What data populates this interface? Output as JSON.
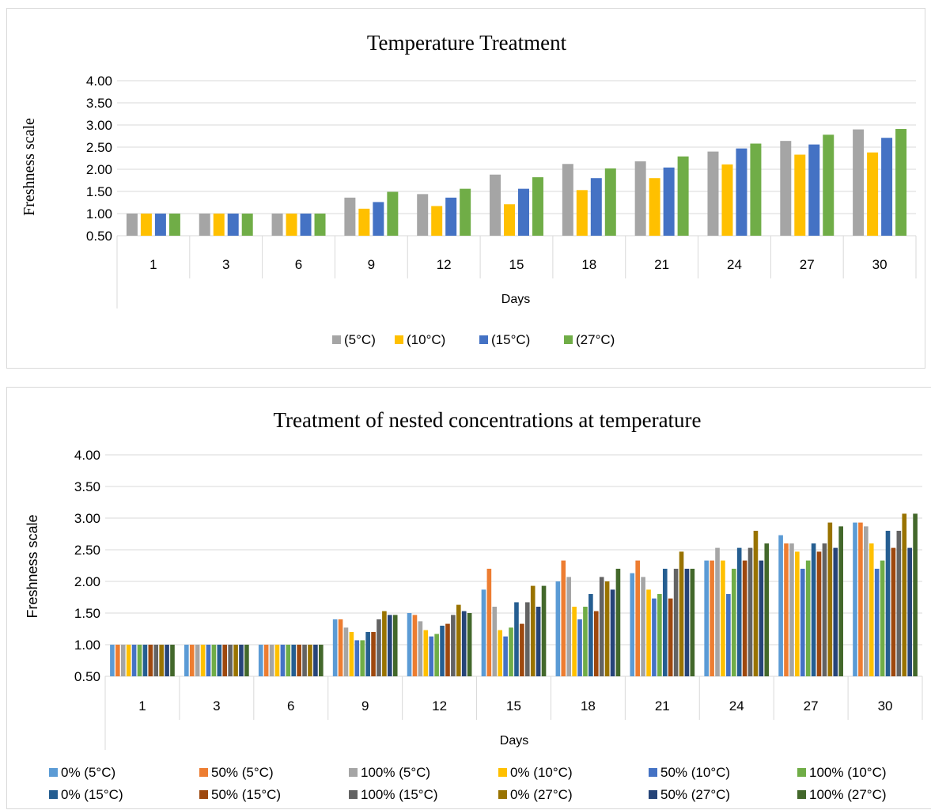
{
  "chart_data": [
    {
      "type": "bar",
      "title": "Temperature Treatment",
      "xlabel": "Days",
      "ylabel": "Freshness scale",
      "ylim": [
        0.5,
        4.0
      ],
      "yticks": [
        "0.50",
        "1.00",
        "1.50",
        "2.00",
        "2.50",
        "3.00",
        "3.50",
        "4.00"
      ],
      "categories": [
        "1",
        "3",
        "6",
        "9",
        "12",
        "15",
        "18",
        "21",
        "24",
        "27",
        "30"
      ],
      "legend_position": "bottom",
      "grid": true,
      "series": [
        {
          "name": "(5°C)",
          "color": "#a5a5a5",
          "values": [
            1.0,
            1.0,
            1.0,
            1.36,
            1.44,
            1.88,
            2.12,
            2.18,
            2.4,
            2.64,
            2.9
          ]
        },
        {
          "name": "(10°C)",
          "color": "#ffc000",
          "values": [
            1.0,
            1.0,
            1.0,
            1.11,
            1.17,
            1.21,
            1.53,
            1.8,
            2.11,
            2.33,
            2.38
          ]
        },
        {
          "name": "(15°C)",
          "color": "#4472c4",
          "values": [
            1.0,
            1.0,
            1.0,
            1.26,
            1.36,
            1.56,
            1.8,
            2.04,
            2.47,
            2.56,
            2.71
          ]
        },
        {
          "name": "(27°C)",
          "color": "#70ad47",
          "values": [
            1.0,
            1.0,
            1.0,
            1.49,
            1.56,
            1.82,
            2.02,
            2.29,
            2.58,
            2.78,
            2.91
          ]
        }
      ]
    },
    {
      "type": "bar",
      "title": "Treatment of nested concentrations at temperature",
      "xlabel": "Days",
      "ylabel": "Freshness scale",
      "ylim": [
        0.5,
        4.0
      ],
      "yticks": [
        "0.50",
        "1.00",
        "1.50",
        "2.00",
        "2.50",
        "3.00",
        "3.50",
        "4.00"
      ],
      "categories": [
        "1",
        "3",
        "6",
        "9",
        "12",
        "15",
        "18",
        "21",
        "24",
        "27",
        "30"
      ],
      "legend_position": "bottom",
      "grid": true,
      "series": [
        {
          "name": "0% (5°C)",
          "color": "#5b9bd5",
          "values": [
            1.0,
            1.0,
            1.0,
            1.4,
            1.5,
            1.87,
            2.0,
            2.13,
            2.33,
            2.73,
            2.93
          ]
        },
        {
          "name": "50% (5°C)",
          "color": "#ed7d31",
          "values": [
            1.0,
            1.0,
            1.0,
            1.4,
            1.47,
            2.2,
            2.33,
            2.33,
            2.33,
            2.6,
            2.93
          ]
        },
        {
          "name": "100% (5°C)",
          "color": "#a5a5a5",
          "values": [
            1.0,
            1.0,
            1.0,
            1.27,
            1.37,
            1.6,
            2.07,
            2.07,
            2.53,
            2.6,
            2.87
          ]
        },
        {
          "name": "0% (10°C)",
          "color": "#ffc000",
          "values": [
            1.0,
            1.0,
            1.0,
            1.2,
            1.23,
            1.23,
            1.6,
            1.87,
            2.33,
            2.47,
            2.6
          ]
        },
        {
          "name": "50% (10°C)",
          "color": "#4472c4",
          "values": [
            1.0,
            1.0,
            1.0,
            1.07,
            1.13,
            1.13,
            1.4,
            1.73,
            1.8,
            2.2,
            2.2
          ]
        },
        {
          "name": "100% (10°C)",
          "color": "#70ad47",
          "values": [
            1.0,
            1.0,
            1.0,
            1.07,
            1.17,
            1.27,
            1.6,
            1.8,
            2.2,
            2.33,
            2.33
          ]
        },
        {
          "name": "0% (15°C)",
          "color": "#255e91",
          "values": [
            1.0,
            1.0,
            1.0,
            1.2,
            1.3,
            1.67,
            1.8,
            2.2,
            2.53,
            2.6,
            2.8
          ]
        },
        {
          "name": "50% (15°C)",
          "color": "#9e480e",
          "values": [
            1.0,
            1.0,
            1.0,
            1.2,
            1.33,
            1.33,
            1.53,
            1.73,
            2.33,
            2.47,
            2.53
          ]
        },
        {
          "name": "100% (15°C)",
          "color": "#636363",
          "values": [
            1.0,
            1.0,
            1.0,
            1.4,
            1.47,
            1.67,
            2.07,
            2.2,
            2.53,
            2.6,
            2.8
          ]
        },
        {
          "name": "0% (27°C)",
          "color": "#997300",
          "values": [
            1.0,
            1.0,
            1.0,
            1.53,
            1.63,
            1.93,
            2.0,
            2.47,
            2.8,
            2.93,
            3.07
          ]
        },
        {
          "name": "50% (27°C)",
          "color": "#264478",
          "values": [
            1.0,
            1.0,
            1.0,
            1.47,
            1.53,
            1.6,
            1.87,
            2.2,
            2.33,
            2.53,
            2.53
          ]
        },
        {
          "name": "100% (27°C)",
          "color": "#43682b",
          "values": [
            1.0,
            1.0,
            1.0,
            1.47,
            1.5,
            1.93,
            2.2,
            2.2,
            2.6,
            2.87,
            3.07
          ]
        }
      ]
    }
  ]
}
